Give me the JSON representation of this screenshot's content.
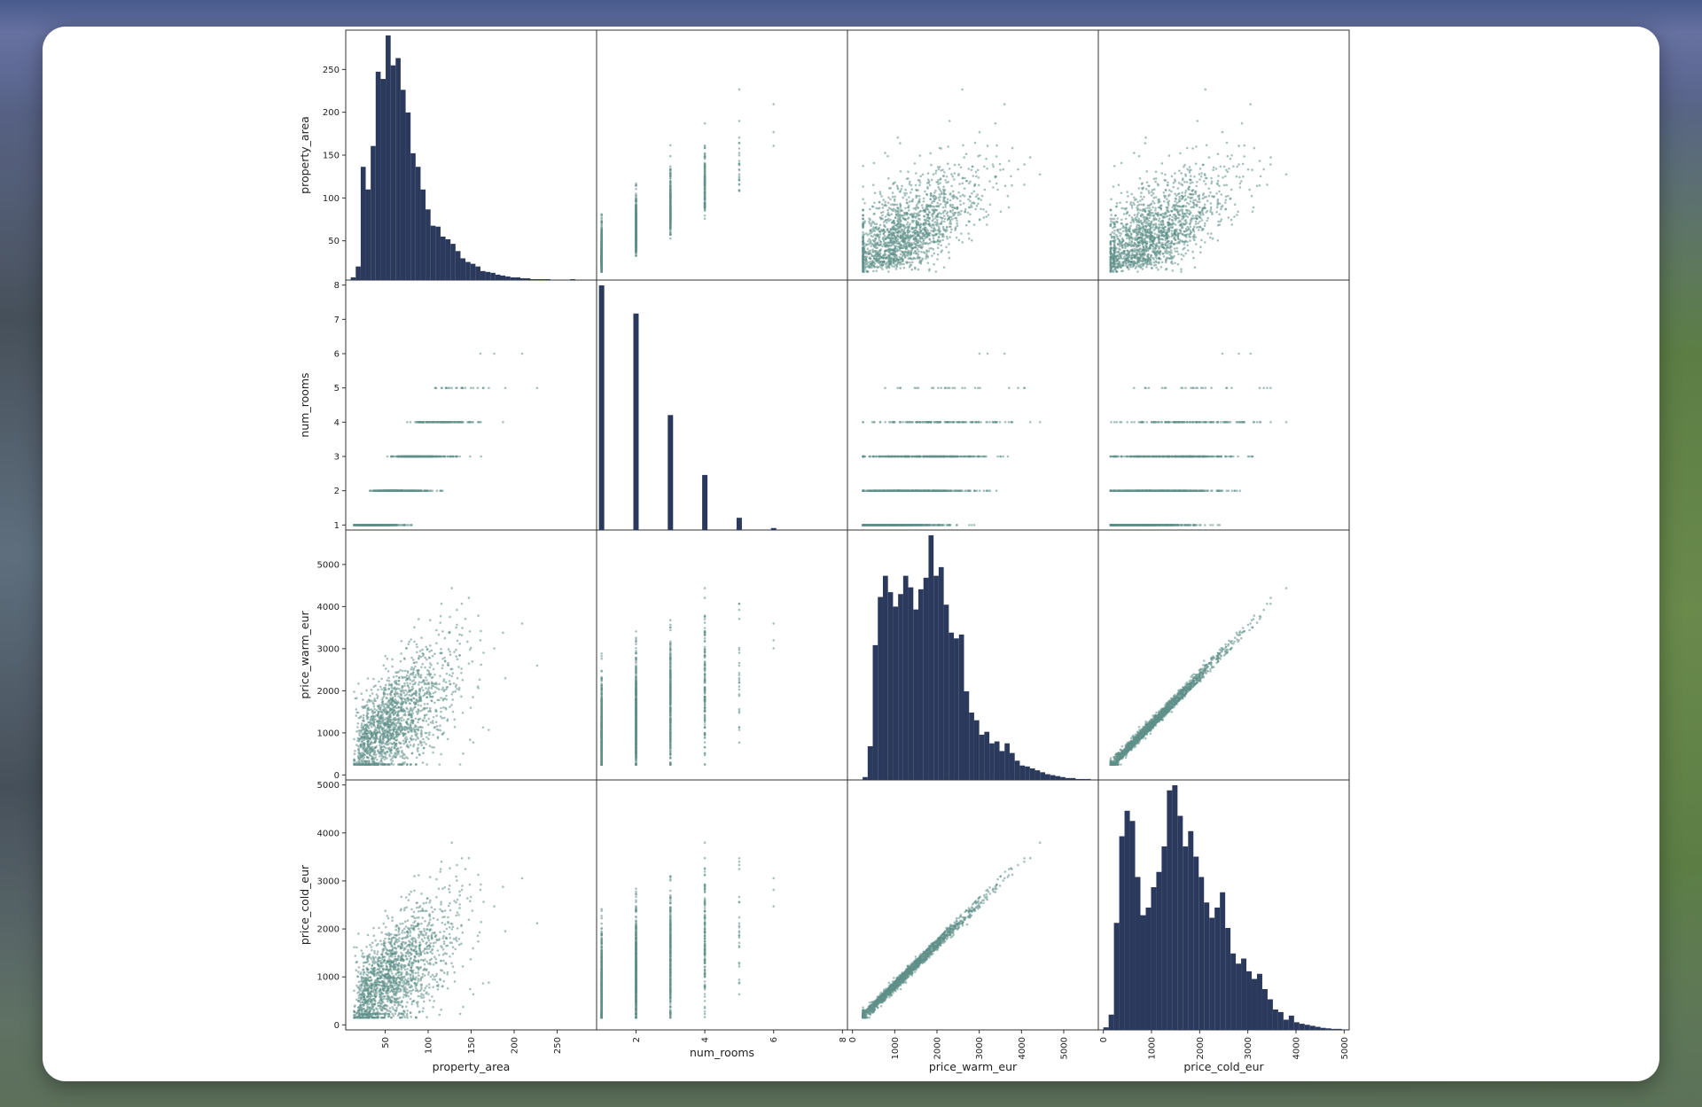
{
  "app": {
    "title": ""
  },
  "colors": {
    "background": "#5a6790",
    "card": "#ffffff",
    "histogram_fill": "#2b3a5c",
    "scatter_point": "#5f8f88"
  },
  "chart_data": {
    "type": "scatter",
    "subtype": "scatter-matrix",
    "title": "",
    "variables": [
      "property_area",
      "num_rooms",
      "price_warm_eur",
      "price_cold_eur"
    ],
    "diagonal": "histogram",
    "ranges": {
      "property_area": [
        10,
        290
      ],
      "num_rooms": [
        1,
        8
      ],
      "price_warm_eur": [
        0,
        5700
      ],
      "price_cold_eur": [
        0,
        5000
      ]
    },
    "y_ticks": {
      "property_area": [
        50,
        100,
        150,
        200,
        250
      ],
      "num_rooms": [
        1,
        2,
        3,
        4,
        5,
        6,
        7,
        8
      ],
      "price_warm_eur": [
        0,
        1000,
        2000,
        3000,
        4000,
        5000
      ],
      "price_cold_eur": [
        0,
        1000,
        2000,
        3000,
        4000,
        5000
      ]
    },
    "x_ticks": {
      "property_area": [
        50,
        100,
        150,
        200,
        250
      ],
      "num_rooms": [
        2,
        4,
        6,
        8
      ],
      "price_warm_eur": [
        0,
        1000,
        2000,
        3000,
        4000,
        5000
      ],
      "price_cold_eur": [
        0,
        1000,
        2000,
        3000,
        4000,
        5000
      ]
    },
    "histograms": {
      "property_area": {
        "bin_start": 10,
        "bin_width": 5.8,
        "counts": [
          3,
          15,
          125,
          100,
          148,
          230,
          222,
          270,
          237,
          245,
          210,
          185,
          140,
          125,
          100,
          78,
          60,
          59,
          48,
          45,
          40,
          32,
          24,
          20,
          18,
          15,
          10,
          9,
          8,
          6,
          5,
          4,
          3,
          3,
          2,
          2,
          1,
          1,
          1,
          1,
          0,
          0,
          0,
          0,
          1
        ]
      },
      "num_rooms": {
        "values": [
          1,
          2,
          3,
          4,
          5,
          6
        ],
        "counts": [
          1000,
          885,
          470,
          225,
          50,
          8
        ]
      },
      "price_warm_eur": {
        "bin_start": 0,
        "bin_width": 120,
        "counts": [
          0,
          0,
          3,
          35,
          140,
          190,
          212,
          195,
          180,
          193,
          212,
          200,
          177,
          198,
          210,
          254,
          212,
          221,
          182,
          153,
          147,
          151,
          92,
          70,
          62,
          47,
          50,
          38,
          40,
          30,
          38,
          28,
          20,
          15,
          14,
          12,
          10,
          8,
          6,
          5,
          4,
          3,
          2,
          2,
          1,
          1,
          1
        ]
      },
      "price_cold_eur": {
        "bin_start": 0,
        "bin_width": 110,
        "counts": [
          5,
          30,
          210,
          380,
          430,
          410,
          300,
          225,
          240,
          280,
          310,
          360,
          470,
          480,
          420,
          360,
          390,
          340,
          300,
          250,
          220,
          240,
          270,
          200,
          150,
          130,
          140,
          115,
          100,
          110,
          80,
          60,
          40,
          35,
          20,
          28,
          15,
          12,
          10,
          8,
          6,
          4,
          3,
          2,
          2,
          1
        ]
      }
    },
    "scatter_trends": [
      {
        "pair": [
          "property_area",
          "price_warm_eur"
        ],
        "relation": "positive, dispersed"
      },
      {
        "pair": [
          "property_area",
          "price_cold_eur"
        ],
        "relation": "positive, dispersed"
      },
      {
        "pair": [
          "price_warm_eur",
          "price_cold_eur"
        ],
        "relation": "near-linear, price_cold ≈ 0.86 × price_warm"
      },
      {
        "pair": [
          "num_rooms",
          "property_area"
        ],
        "relation": "discrete columns rising with room count"
      }
    ],
    "grid": false,
    "legend": "none"
  }
}
